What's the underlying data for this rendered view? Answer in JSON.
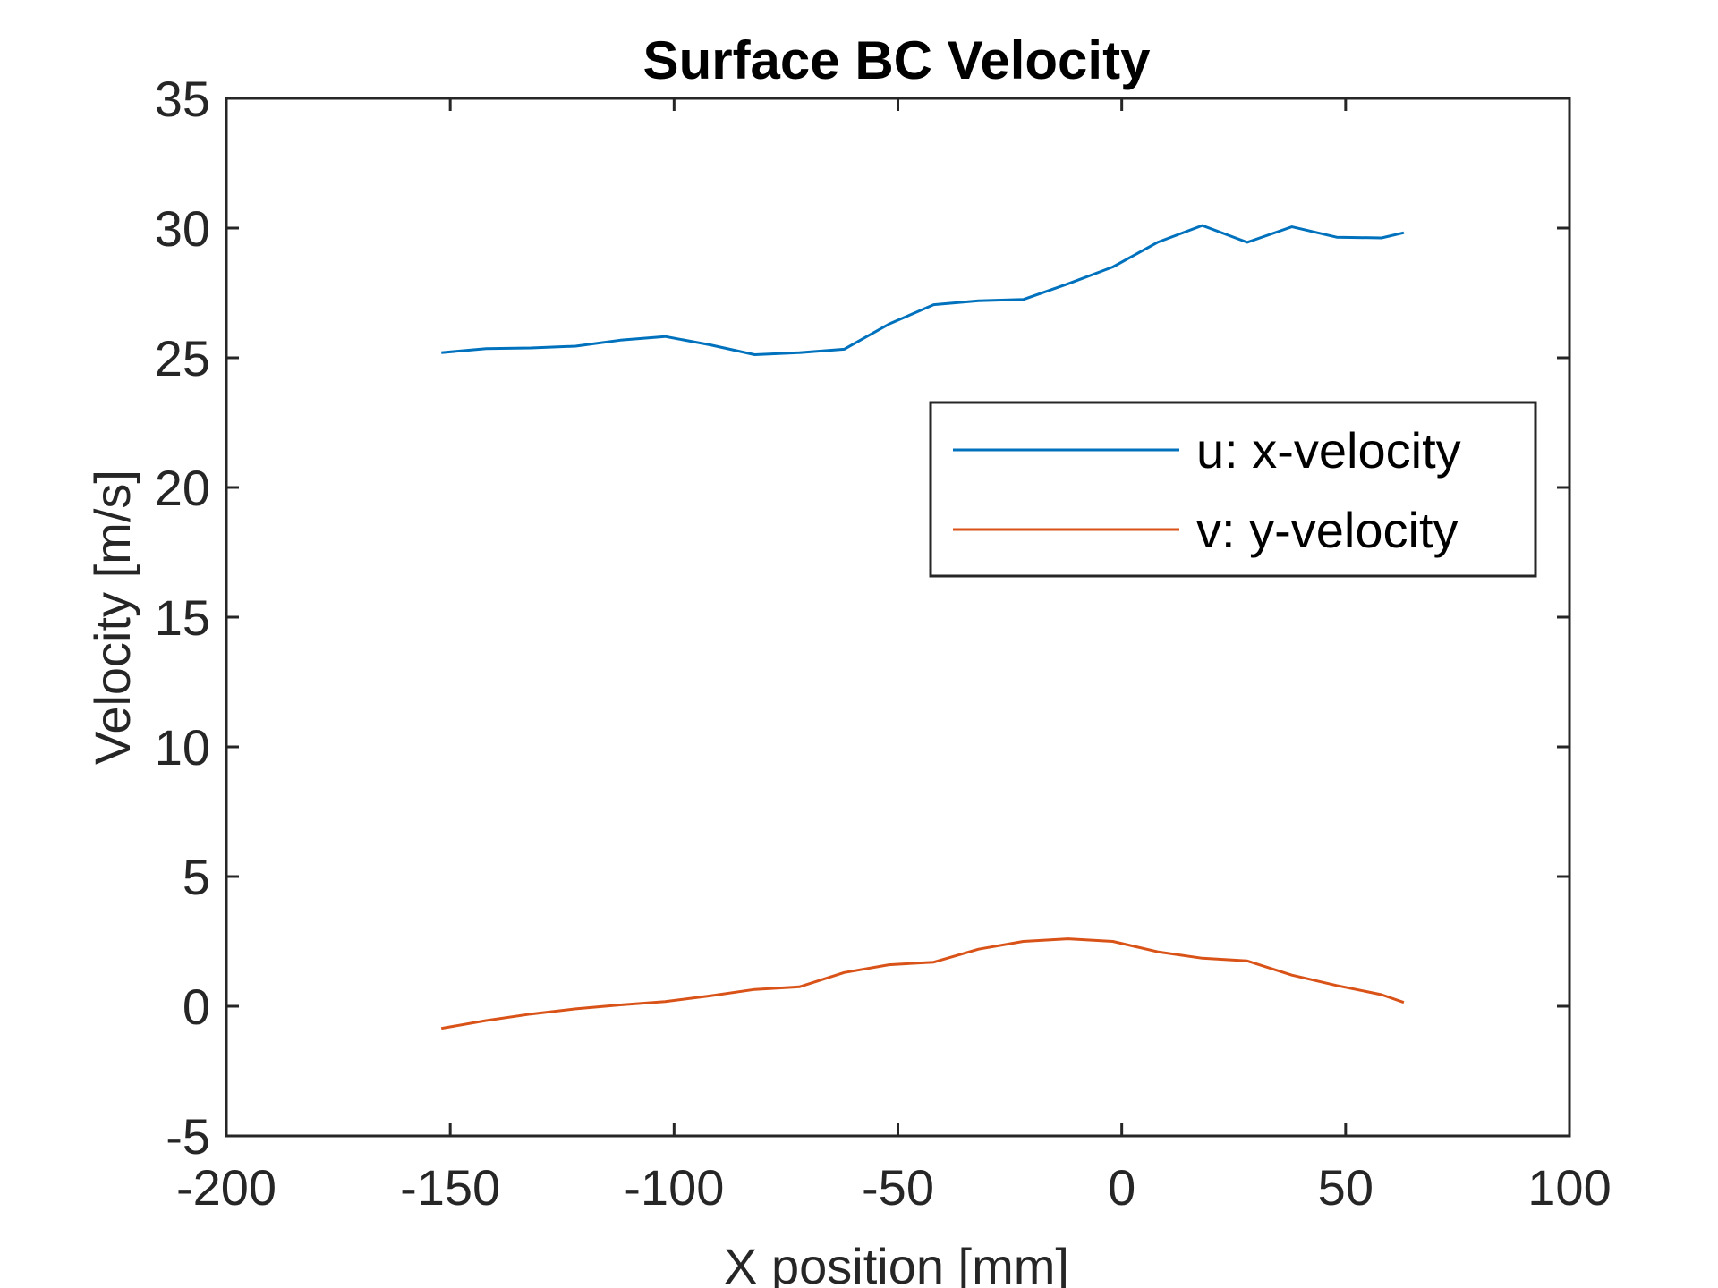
{
  "chart_data": {
    "type": "line",
    "title": "Surface BC Velocity",
    "xlabel": "X position [mm]",
    "ylabel": "Velocity [m/s]",
    "xlim": [
      -200,
      100
    ],
    "ylim": [
      -5,
      35
    ],
    "xticks": [
      -200,
      -150,
      -100,
      -50,
      0,
      50,
      100
    ],
    "yticks": [
      -5,
      0,
      5,
      10,
      15,
      20,
      25,
      30,
      35
    ],
    "xtick_labels": [
      "-200",
      "-150",
      "-100",
      "-50",
      "0",
      "50",
      "100"
    ],
    "ytick_labels": [
      "-5",
      "0",
      "5",
      "10",
      "15",
      "20",
      "25",
      "30",
      "35"
    ],
    "grid": false,
    "legend_position": "upper-right",
    "series": [
      {
        "name": "u: x-velocity",
        "color": "#0072BD",
        "x": [
          -152,
          -142,
          -132,
          -122,
          -112,
          -102,
          -92,
          -82,
          -72,
          -62,
          -52,
          -42,
          -32,
          -22,
          -12,
          -2,
          8,
          18,
          28,
          38,
          48,
          58,
          63
        ],
        "y": [
          25.2,
          25.35,
          25.38,
          25.45,
          25.68,
          25.82,
          25.5,
          25.12,
          25.2,
          25.33,
          26.3,
          27.05,
          27.2,
          27.25,
          27.85,
          28.5,
          29.45,
          30.1,
          29.45,
          30.05,
          29.65,
          29.62,
          29.82
        ]
      },
      {
        "name": "v: y-velocity",
        "color": "#D95319",
        "x": [
          -152,
          -142,
          -132,
          -122,
          -112,
          -102,
          -92,
          -82,
          -72,
          -62,
          -52,
          -42,
          -32,
          -22,
          -12,
          -2,
          8,
          18,
          28,
          38,
          48,
          58,
          63
        ],
        "y": [
          -0.85,
          -0.55,
          -0.3,
          -0.1,
          0.05,
          0.18,
          0.4,
          0.65,
          0.75,
          1.3,
          1.6,
          1.7,
          2.2,
          2.5,
          2.6,
          2.5,
          2.1,
          1.85,
          1.75,
          1.2,
          0.8,
          0.45,
          0.15
        ]
      }
    ]
  }
}
